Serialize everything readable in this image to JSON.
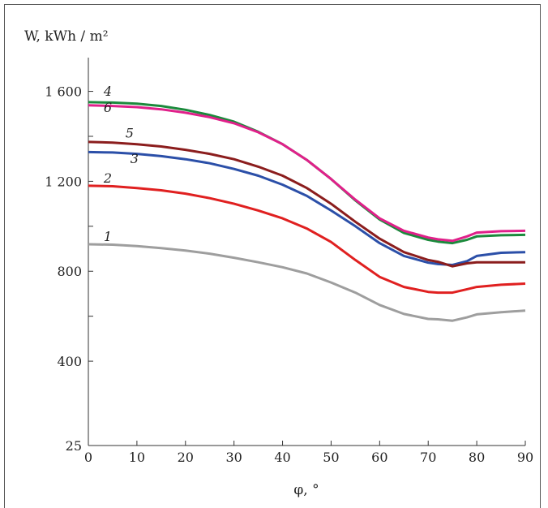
{
  "chart_data": {
    "type": "line",
    "ylabel": "W, kWh / m²",
    "xlabel": "φ, °",
    "xlim": [
      0,
      90
    ],
    "ylim": [
      25,
      1750
    ],
    "x_ticks": [
      0,
      10,
      20,
      30,
      40,
      50,
      60,
      70,
      80,
      90
    ],
    "y_tick_labels": [
      {
        "value": 25,
        "label": "25"
      },
      {
        "value": 400,
        "label": "400"
      },
      {
        "value": 800,
        "label": "800"
      },
      {
        "value": 1200,
        "label": "1 200"
      },
      {
        "value": 1600,
        "label": "1 600"
      }
    ],
    "y_minor_ticks": [
      600,
      1000,
      1400
    ],
    "grid": false,
    "x": [
      0,
      5,
      10,
      15,
      20,
      25,
      30,
      35,
      40,
      45,
      50,
      55,
      60,
      65,
      70,
      72,
      75,
      78,
      80,
      85,
      90
    ],
    "series": [
      {
        "name": "1",
        "color": "#9e9e9e",
        "label_x": 4,
        "label_y": 935,
        "values": [
          920,
          918,
          912,
          903,
          892,
          878,
          860,
          840,
          818,
          790,
          750,
          705,
          650,
          610,
          588,
          586,
          580,
          595,
          608,
          618,
          625
        ]
      },
      {
        "name": "2",
        "color": "#e02020",
        "label_x": 4,
        "label_y": 1195,
        "values": [
          1180,
          1178,
          1170,
          1160,
          1145,
          1125,
          1100,
          1070,
          1035,
          990,
          930,
          850,
          775,
          730,
          708,
          705,
          705,
          720,
          730,
          740,
          745
        ]
      },
      {
        "name": "3",
        "color": "#2b4fa8",
        "label_x": 9.5,
        "label_y": 1280,
        "values": [
          1330,
          1328,
          1322,
          1312,
          1298,
          1280,
          1255,
          1225,
          1185,
          1135,
          1070,
          1000,
          925,
          868,
          838,
          832,
          828,
          845,
          868,
          882,
          885
        ]
      },
      {
        "name": "4",
        "color": "#1b8a3c",
        "label_x": 4,
        "label_y": 1580,
        "values": [
          1552,
          1550,
          1545,
          1535,
          1518,
          1495,
          1465,
          1420,
          1365,
          1295,
          1210,
          1115,
          1030,
          970,
          940,
          932,
          925,
          940,
          955,
          960,
          962
        ]
      },
      {
        "name": "5",
        "color": "#8b1d1d",
        "label_x": 8.5,
        "label_y": 1395,
        "values": [
          1375,
          1372,
          1365,
          1355,
          1340,
          1322,
          1298,
          1265,
          1225,
          1170,
          1100,
          1020,
          945,
          885,
          850,
          842,
          822,
          835,
          840,
          840,
          840
        ]
      },
      {
        "name": "6",
        "color": "#e0208a",
        "label_x": 4,
        "label_y": 1508,
        "values": [
          1538,
          1535,
          1530,
          1520,
          1505,
          1485,
          1458,
          1418,
          1365,
          1295,
          1210,
          1118,
          1035,
          980,
          950,
          942,
          935,
          955,
          972,
          978,
          980
        ]
      }
    ]
  }
}
